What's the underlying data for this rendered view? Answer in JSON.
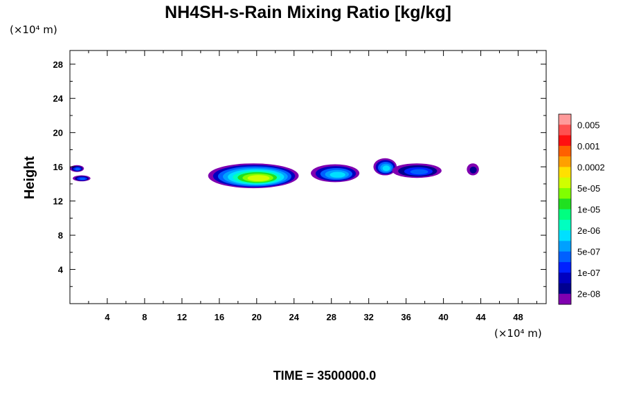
{
  "chart_data": {
    "type": "heatmap",
    "title": "NH4SH-s-Rain Mixing Ratio [kg/kg]",
    "xlabel": "",
    "ylabel": "Height",
    "x_unit_label": "(×10⁴ m)",
    "y_unit_label": "(×10⁴ m)",
    "xlim": [
      0,
      51
    ],
    "ylim": [
      0,
      29.6
    ],
    "x_ticks": [
      4,
      8,
      12,
      16,
      20,
      24,
      28,
      32,
      36,
      40,
      44,
      48
    ],
    "y_ticks": [
      4,
      8,
      12,
      16,
      20,
      24,
      28
    ],
    "grid": false,
    "colorbar": {
      "labels": [
        "0.005",
        "0.001",
        "0.0002",
        "5e-05",
        "1e-05",
        "2e-06",
        "5e-07",
        "1e-07",
        "2e-08"
      ],
      "colors_top_to_bottom": [
        "#ff9a9a",
        "#ff5050",
        "#ff1010",
        "#ff6000",
        "#ffa000",
        "#ffe000",
        "#d0ff00",
        "#80ff00",
        "#20e020",
        "#00ff80",
        "#00ffc0",
        "#00e0ff",
        "#00a0ff",
        "#0060ff",
        "#0020ff",
        "#0000c0",
        "#000090",
        "#8000b0"
      ]
    },
    "features": [
      {
        "x": [
          0.0,
          1.5
        ],
        "y": [
          15.4,
          16.2
        ],
        "level": "1e-07"
      },
      {
        "x": [
          0.3,
          2.2
        ],
        "y": [
          14.3,
          15.0
        ],
        "level": "1e-07"
      },
      {
        "x": [
          14.8,
          24.5
        ],
        "y": [
          13.5,
          16.4
        ],
        "level": "5e-05"
      },
      {
        "x": [
          25.8,
          31.0
        ],
        "y": [
          14.2,
          16.3
        ],
        "level": "5e-07"
      },
      {
        "x": [
          32.5,
          35.0
        ],
        "y": [
          15.0,
          17.0
        ],
        "level": "5e-07"
      },
      {
        "x": [
          34.5,
          39.8
        ],
        "y": [
          14.7,
          16.4
        ],
        "level": "1e-07"
      },
      {
        "x": [
          42.5,
          43.8
        ],
        "y": [
          15.0,
          16.4
        ],
        "level": "2e-08"
      }
    ]
  },
  "footer": {
    "time_label": "TIME = 3500000.0"
  }
}
